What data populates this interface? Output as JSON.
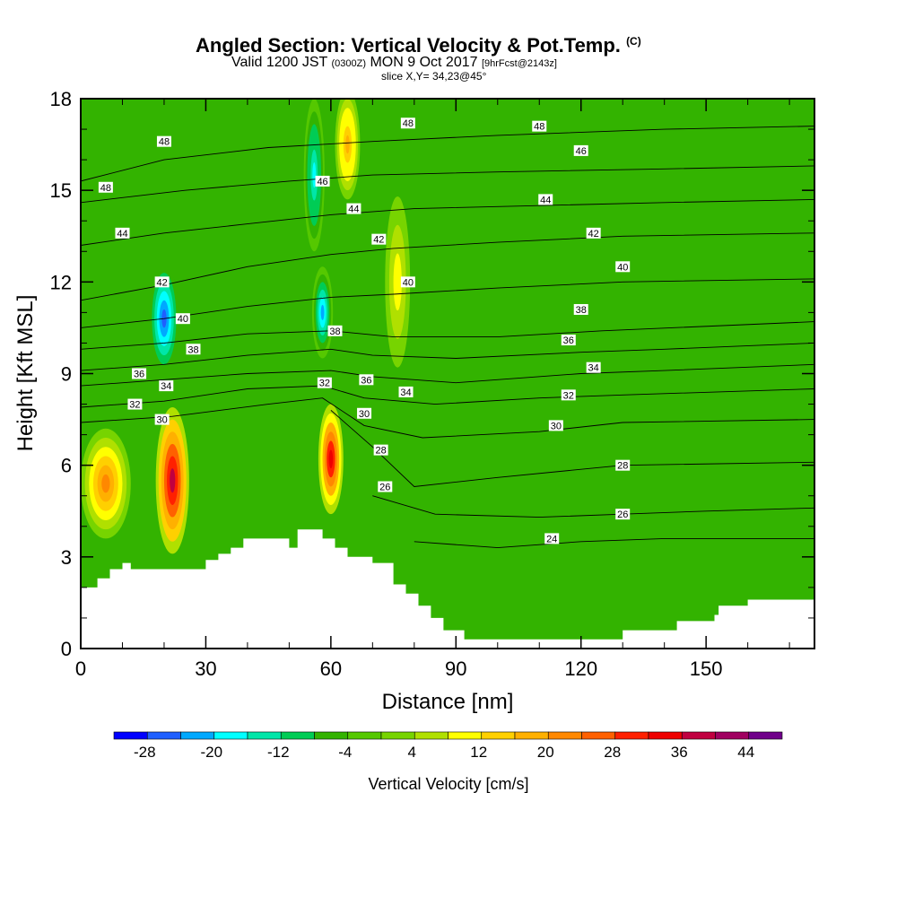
{
  "title": {
    "main": "Angled Section: Vertical Velocity & Pot.Temp.",
    "mark": "(C)",
    "valid_prefix": "Valid 1200 JST",
    "valid_zone": "(0300Z)",
    "valid_date": "MON 9 Oct 2017",
    "valid_fcst": "[9hrFcst@2143z]",
    "slice": "slice X,Y= 34,23@45°"
  },
  "chart_data": {
    "type": "heatmap",
    "title": "Angled Section: Vertical Velocity & Pot.Temp.",
    "xlabel": "Distance [nm]",
    "ylabel": "Height [Kft MSL]",
    "xlim": [
      0,
      176
    ],
    "ylim": [
      0,
      18
    ],
    "x_ticks": [
      0,
      30,
      60,
      90,
      120,
      150
    ],
    "y_ticks": [
      0,
      3,
      6,
      9,
      12,
      15,
      18
    ],
    "colorbar": {
      "label": "Vertical Velocity [cm/s]",
      "tick_labels": [
        "-28",
        "-20",
        "-12",
        "-4",
        "4",
        "12",
        "20",
        "28",
        "36",
        "44"
      ],
      "levels": [
        -32,
        -28,
        -24,
        -20,
        -16,
        -12,
        -8,
        -4,
        0,
        4,
        8,
        12,
        16,
        20,
        24,
        28,
        32,
        36,
        40,
        44,
        48
      ],
      "colors": [
        "#0000ff",
        "#1f5fff",
        "#00a8ff",
        "#00ffff",
        "#00e6a8",
        "#00cc55",
        "#33b300",
        "#55c800",
        "#77d400",
        "#b0e000",
        "#ffff00",
        "#ffd000",
        "#ffb000",
        "#ff8800",
        "#ff6000",
        "#ff2000",
        "#ee0000",
        "#c00040",
        "#a00060",
        "#70008a"
      ]
    },
    "theta_contours": [
      {
        "label": "24",
        "points": [
          [
            80,
            3.5
          ],
          [
            100,
            3.3
          ],
          [
            120,
            3.5
          ],
          [
            140,
            3.6
          ],
          [
            176,
            3.6
          ]
        ]
      },
      {
        "label": "26",
        "points": [
          [
            70,
            5.0
          ],
          [
            85,
            4.4
          ],
          [
            110,
            4.3
          ],
          [
            130,
            4.4
          ],
          [
            150,
            4.5
          ],
          [
            176,
            4.6
          ]
        ]
      },
      {
        "label": "28",
        "points": [
          [
            60,
            7.8
          ],
          [
            70,
            6.6
          ],
          [
            80,
            5.3
          ],
          [
            100,
            5.6
          ],
          [
            130,
            6.0
          ],
          [
            176,
            6.1
          ]
        ]
      },
      {
        "label": "30",
        "points": [
          [
            0,
            7.4
          ],
          [
            22,
            7.6
          ],
          [
            45,
            8.0
          ],
          [
            58,
            8.2
          ],
          [
            68,
            7.3
          ],
          [
            82,
            6.9
          ],
          [
            110,
            7.1
          ],
          [
            130,
            7.4
          ],
          [
            176,
            7.5
          ]
        ]
      },
      {
        "label": "32",
        "points": [
          [
            0,
            7.9
          ],
          [
            20,
            8.1
          ],
          [
            40,
            8.5
          ],
          [
            58,
            8.6
          ],
          [
            68,
            8.2
          ],
          [
            85,
            8.0
          ],
          [
            110,
            8.2
          ],
          [
            130,
            8.3
          ],
          [
            176,
            8.5
          ]
        ]
      },
      {
        "label": "34",
        "points": [
          [
            0,
            8.6
          ],
          [
            20,
            8.8
          ],
          [
            40,
            9.0
          ],
          [
            60,
            9.1
          ],
          [
            70,
            8.9
          ],
          [
            90,
            8.7
          ],
          [
            120,
            9.0
          ],
          [
            140,
            9.1
          ],
          [
            176,
            9.3
          ]
        ]
      },
      {
        "label": "36",
        "points": [
          [
            0,
            9.1
          ],
          [
            20,
            9.3
          ],
          [
            40,
            9.6
          ],
          [
            60,
            9.8
          ],
          [
            70,
            9.6
          ],
          [
            90,
            9.5
          ],
          [
            120,
            9.7
          ],
          [
            140,
            9.8
          ],
          [
            176,
            10.0
          ]
        ]
      },
      {
        "label": "38",
        "points": [
          [
            0,
            9.8
          ],
          [
            20,
            10.0
          ],
          [
            40,
            10.3
          ],
          [
            60,
            10.4
          ],
          [
            75,
            10.2
          ],
          [
            100,
            10.2
          ],
          [
            125,
            10.4
          ],
          [
            176,
            10.7
          ]
        ]
      },
      {
        "label": "40",
        "points": [
          [
            0,
            10.5
          ],
          [
            20,
            10.8
          ],
          [
            40,
            11.2
          ],
          [
            60,
            11.5
          ],
          [
            75,
            11.6
          ],
          [
            100,
            11.8
          ],
          [
            130,
            12.0
          ],
          [
            176,
            12.1
          ]
        ]
      },
      {
        "label": "42",
        "points": [
          [
            0,
            11.4
          ],
          [
            20,
            11.9
          ],
          [
            40,
            12.5
          ],
          [
            60,
            12.9
          ],
          [
            75,
            13.1
          ],
          [
            100,
            13.3
          ],
          [
            130,
            13.5
          ],
          [
            176,
            13.6
          ]
        ]
      },
      {
        "label": "44",
        "points": [
          [
            0,
            13.2
          ],
          [
            20,
            13.6
          ],
          [
            40,
            13.9
          ],
          [
            60,
            14.2
          ],
          [
            80,
            14.4
          ],
          [
            110,
            14.5
          ],
          [
            140,
            14.6
          ],
          [
            176,
            14.7
          ]
        ]
      },
      {
        "label": "46",
        "points": [
          [
            0,
            14.6
          ],
          [
            25,
            15.0
          ],
          [
            50,
            15.3
          ],
          [
            70,
            15.5
          ],
          [
            100,
            15.6
          ],
          [
            140,
            15.7
          ],
          [
            176,
            15.8
          ]
        ]
      },
      {
        "label": "48",
        "points": [
          [
            0,
            15.3
          ],
          [
            20,
            16.0
          ],
          [
            45,
            16.4
          ],
          [
            70,
            16.6
          ],
          [
            100,
            16.8
          ],
          [
            140,
            17.0
          ],
          [
            176,
            17.1
          ]
        ]
      }
    ],
    "theta_labels": [
      {
        "text": "48",
        "x": 6,
        "y": 15.1
      },
      {
        "text": "48",
        "x": 20,
        "y": 16.6
      },
      {
        "text": "44",
        "x": 10,
        "y": 13.6
      },
      {
        "text": "42",
        "x": 19.5,
        "y": 12.0
      },
      {
        "text": "40",
        "x": 24.5,
        "y": 10.8
      },
      {
        "text": "38",
        "x": 27,
        "y": 9.8
      },
      {
        "text": "36",
        "x": 14,
        "y": 9.0
      },
      {
        "text": "34",
        "x": 20.5,
        "y": 8.6
      },
      {
        "text": "32",
        "x": 13,
        "y": 8.0
      },
      {
        "text": "30",
        "x": 19.5,
        "y": 7.5
      },
      {
        "text": "46",
        "x": 58,
        "y": 15.3
      },
      {
        "text": "44",
        "x": 65.5,
        "y": 14.4
      },
      {
        "text": "42",
        "x": 71.5,
        "y": 13.4
      },
      {
        "text": "40",
        "x": 78.5,
        "y": 12.0
      },
      {
        "text": "38",
        "x": 61,
        "y": 10.4
      },
      {
        "text": "36",
        "x": 68.5,
        "y": 8.8
      },
      {
        "text": "34",
        "x": 78,
        "y": 8.4
      },
      {
        "text": "32",
        "x": 58.5,
        "y": 8.7
      },
      {
        "text": "30",
        "x": 68,
        "y": 7.7
      },
      {
        "text": "28",
        "x": 72,
        "y": 6.5
      },
      {
        "text": "26",
        "x": 73,
        "y": 5.3
      },
      {
        "text": "48",
        "x": 78.5,
        "y": 17.2
      },
      {
        "text": "48",
        "x": 110,
        "y": 17.1
      },
      {
        "text": "46",
        "x": 120,
        "y": 16.3
      },
      {
        "text": "44",
        "x": 111.5,
        "y": 14.7
      },
      {
        "text": "42",
        "x": 123,
        "y": 13.6
      },
      {
        "text": "40",
        "x": 130,
        "y": 12.5
      },
      {
        "text": "38",
        "x": 120,
        "y": 11.1
      },
      {
        "text": "36",
        "x": 117,
        "y": 10.1
      },
      {
        "text": "34",
        "x": 123,
        "y": 9.2
      },
      {
        "text": "32",
        "x": 117,
        "y": 8.3
      },
      {
        "text": "30",
        "x": 114,
        "y": 7.3
      },
      {
        "text": "28",
        "x": 130,
        "y": 6.0
      },
      {
        "text": "26",
        "x": 130,
        "y": 4.4
      },
      {
        "text": "24",
        "x": 113,
        "y": 3.6
      }
    ],
    "velocity_features": [
      {
        "kind": "updraft",
        "x": 22,
        "y": 5.5,
        "rx": 4,
        "ry": 2.4,
        "w": 36
      },
      {
        "kind": "updraft",
        "x": 6,
        "y": 5.4,
        "rx": 6,
        "ry": 1.8,
        "w": 22
      },
      {
        "kind": "downdraft",
        "x": 20,
        "y": 10.8,
        "rx": 3.5,
        "ry": 1.8,
        "w": -26
      },
      {
        "kind": "updraft",
        "x": 60,
        "y": 6.2,
        "rx": 3,
        "ry": 1.8,
        "w": 34
      },
      {
        "kind": "downdraft",
        "x": 56,
        "y": 15.5,
        "rx": 2.5,
        "ry": 2.5,
        "w": -18
      },
      {
        "kind": "downdraft",
        "x": 58,
        "y": 11.0,
        "rx": 2.5,
        "ry": 1.5,
        "w": -22
      },
      {
        "kind": "updraft",
        "x": 64,
        "y": 16.5,
        "rx": 3,
        "ry": 1.8,
        "w": 16
      },
      {
        "kind": "updraft",
        "x": 76,
        "y": 12.0,
        "rx": 3,
        "ry": 2.8,
        "w": 10
      }
    ],
    "terrain_kft": [
      [
        0,
        2.0
      ],
      [
        4,
        2.0
      ],
      [
        4,
        2.3
      ],
      [
        7,
        2.3
      ],
      [
        7,
        2.6
      ],
      [
        10,
        2.6
      ],
      [
        10,
        2.8
      ],
      [
        12,
        2.8
      ],
      [
        12,
        2.6
      ],
      [
        30,
        2.6
      ],
      [
        30,
        2.9
      ],
      [
        33,
        2.9
      ],
      [
        33,
        3.1
      ],
      [
        36,
        3.1
      ],
      [
        36,
        3.3
      ],
      [
        39,
        3.3
      ],
      [
        39,
        3.6
      ],
      [
        50,
        3.6
      ],
      [
        50,
        3.3
      ],
      [
        52,
        3.3
      ],
      [
        52,
        3.9
      ],
      [
        58,
        3.9
      ],
      [
        58,
        3.6
      ],
      [
        61,
        3.6
      ],
      [
        61,
        3.3
      ],
      [
        64,
        3.3
      ],
      [
        64,
        3.0
      ],
      [
        70,
        3.0
      ],
      [
        70,
        2.8
      ],
      [
        75,
        2.8
      ],
      [
        75,
        2.1
      ],
      [
        78,
        2.1
      ],
      [
        78,
        1.8
      ],
      [
        81,
        1.8
      ],
      [
        81,
        1.4
      ],
      [
        84,
        1.4
      ],
      [
        84,
        1.0
      ],
      [
        87,
        1.0
      ],
      [
        87,
        0.6
      ],
      [
        92,
        0.6
      ],
      [
        92,
        0.3
      ],
      [
        130,
        0.3
      ],
      [
        130,
        0.6
      ],
      [
        143,
        0.6
      ],
      [
        143,
        0.9
      ],
      [
        152,
        0.9
      ],
      [
        152,
        1.1
      ],
      [
        153,
        1.1
      ],
      [
        153,
        1.4
      ],
      [
        160,
        1.4
      ],
      [
        160,
        1.6
      ],
      [
        176,
        1.6
      ]
    ]
  }
}
